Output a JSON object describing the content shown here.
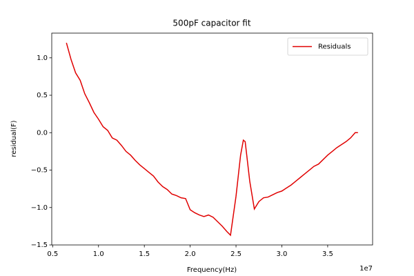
{
  "chart_data": {
    "type": "line",
    "title": "500pF capacitor fit",
    "xlabel": "Frequency(Hz)",
    "ylabel": "residual(F)",
    "x_offset_label": "1e7",
    "legend": "upper right",
    "grid": false,
    "x": [
      6500000,
      7000000,
      7500000,
      8000000,
      8500000,
      9000000,
      9500000,
      10000000,
      10500000,
      11000000,
      11500000,
      12000000,
      12500000,
      13000000,
      13500000,
      14000000,
      14500000,
      15000000,
      15500000,
      16000000,
      16500000,
      17000000,
      17500000,
      18000000,
      18500000,
      19000000,
      19500000,
      20000000,
      20500000,
      21000000,
      21500000,
      22000000,
      22500000,
      23000000,
      23500000,
      24000000,
      24400000,
      25000000,
      25500000,
      25800000,
      26000000,
      26500000,
      27000000,
      27500000,
      28000000,
      28500000,
      29000000,
      29500000,
      30000000,
      30500000,
      31000000,
      31500000,
      32000000,
      32500000,
      33000000,
      33500000,
      34000000,
      34500000,
      35000000,
      35500000,
      36000000,
      36500000,
      37000000,
      37500000,
      38000000,
      38300000
    ],
    "series": [
      {
        "name": "Residuals",
        "color": "#e00000",
        "values": [
          1.2,
          0.98,
          0.8,
          0.7,
          0.52,
          0.4,
          0.27,
          0.18,
          0.08,
          0.03,
          -0.07,
          -0.1,
          -0.17,
          -0.25,
          -0.3,
          -0.37,
          -0.43,
          -0.48,
          -0.53,
          -0.58,
          -0.66,
          -0.72,
          -0.76,
          -0.82,
          -0.84,
          -0.87,
          -0.88,
          -1.03,
          -1.07,
          -1.1,
          -1.12,
          -1.1,
          -1.13,
          -1.19,
          -1.25,
          -1.32,
          -1.37,
          -0.85,
          -0.3,
          -0.1,
          -0.12,
          -0.65,
          -1.02,
          -0.92,
          -0.87,
          -0.86,
          -0.83,
          -0.8,
          -0.78,
          -0.74,
          -0.7,
          -0.65,
          -0.6,
          -0.55,
          -0.5,
          -0.45,
          -0.42,
          -0.36,
          -0.3,
          -0.25,
          -0.2,
          -0.16,
          -0.12,
          -0.07,
          0.0,
          0.0
        ]
      }
    ],
    "xlim": [
      4900000,
      39900000
    ],
    "ylim": [
      -1.5,
      1.33
    ],
    "xticks": [
      {
        "value": 5000000,
        "label": "0.5"
      },
      {
        "value": 10000000,
        "label": "1.0"
      },
      {
        "value": 15000000,
        "label": "1.5"
      },
      {
        "value": 20000000,
        "label": "2.0"
      },
      {
        "value": 25000000,
        "label": "2.5"
      },
      {
        "value": 30000000,
        "label": "3.0"
      },
      {
        "value": 35000000,
        "label": "3.5"
      }
    ],
    "yticks": [
      {
        "value": -1.5,
        "label": "−1.5"
      },
      {
        "value": -1,
        "label": "−1.0"
      },
      {
        "value": -0.5,
        "label": "−0.5"
      },
      {
        "value": 0,
        "label": "0.0"
      },
      0.5,
      {
        "value": 1,
        "label": "1.0"
      }
    ]
  }
}
